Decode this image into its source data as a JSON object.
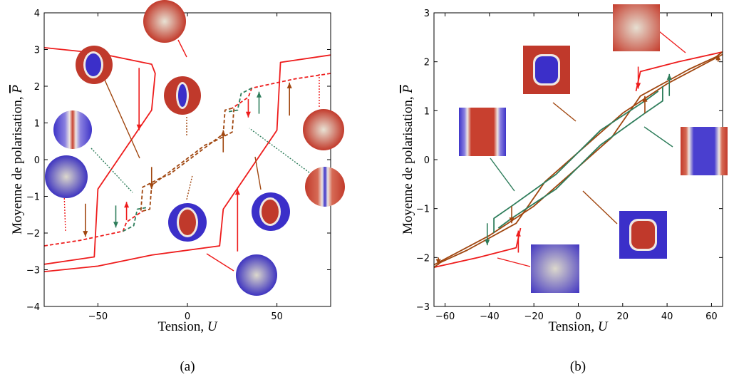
{
  "colors": {
    "red": "#ee1c1c",
    "brown": "#a0460f",
    "green": "#2e7d5b",
    "map_red": "#c0392b",
    "map_blue": "#3b2fc9"
  },
  "chart_data": [
    {
      "type": "line",
      "panel": "a",
      "caption": "(a)",
      "xlabel_text": "Tension,",
      "xlabel_symbol": "U",
      "ylabel_text": "Moyenne de polarisation,",
      "ylabel_symbol": "P",
      "xlim": [
        -80,
        80
      ],
      "ylim": [
        -4,
        4
      ],
      "xticks": [
        -50,
        0,
        50
      ],
      "xtick_labels": [
        "−50",
        "0",
        "50"
      ],
      "yticks": [
        -4,
        -3,
        -2,
        -1,
        0,
        1,
        2,
        3,
        4
      ],
      "ytick_labels": [
        "−4",
        "−3",
        "−2",
        "−1",
        "0",
        "1",
        "2",
        "3",
        "4"
      ],
      "series": [
        {
          "color": "red",
          "dash": false,
          "points": [
            [
              -80,
              -3.05
            ],
            [
              -50,
              -2.9
            ],
            [
              -20,
              -2.6
            ],
            [
              18,
              -2.35
            ],
            [
              20,
              -1.35
            ],
            [
              50,
              0.8
            ],
            [
              52,
              2.65
            ],
            [
              80,
              2.85
            ]
          ]
        },
        {
          "color": "red",
          "dash": false,
          "points": [
            [
              -80,
              3.05
            ],
            [
              -50,
              2.9
            ],
            [
              -20,
              2.6
            ],
            [
              -18,
              2.35
            ],
            [
              -20,
              1.35
            ],
            [
              -50,
              -0.8
            ],
            [
              -52,
              -2.65
            ],
            [
              -80,
              -2.85
            ]
          ]
        },
        {
          "color": "red",
          "dash": true,
          "points": [
            [
              -80,
              -2.35
            ],
            [
              -60,
              -2.2
            ],
            [
              -36,
              -1.95
            ],
            [
              -34,
              -1.7
            ],
            [
              -25,
              -1.4
            ]
          ]
        },
        {
          "color": "red",
          "dash": true,
          "points": [
            [
              80,
              2.35
            ],
            [
              60,
              2.2
            ],
            [
              36,
              1.95
            ],
            [
              34,
              1.7
            ],
            [
              25,
              1.4
            ]
          ]
        },
        {
          "color": "brown",
          "dash": true,
          "points": [
            [
              -25,
              -1.4
            ],
            [
              -21,
              -1.35
            ],
            [
              -20,
              -0.7
            ],
            [
              10,
              0.4
            ],
            [
              15,
              0.5
            ],
            [
              25,
              0.75
            ],
            [
              26,
              1.4
            ]
          ]
        },
        {
          "color": "brown",
          "dash": true,
          "points": [
            [
              25,
              1.4
            ],
            [
              21,
              1.35
            ],
            [
              20,
              0.7
            ],
            [
              -10,
              -0.4
            ],
            [
              -15,
              -0.5
            ],
            [
              -25,
              -0.75
            ],
            [
              -26,
              -1.4
            ]
          ]
        },
        {
          "color": "green",
          "dash": true,
          "points": [
            [
              -36,
              -1.95
            ],
            [
              -30,
              -1.8
            ],
            [
              -28,
              -1.35
            ],
            [
              -22,
              -1.3
            ]
          ]
        },
        {
          "color": "green",
          "dash": true,
          "points": [
            [
              36,
              1.95
            ],
            [
              30,
              1.8
            ],
            [
              28,
              1.35
            ],
            [
              22,
              1.3
            ]
          ]
        }
      ],
      "arrows": [
        {
          "color": "red",
          "x": -27,
          "y1": 2.5,
          "y2": 0.8
        },
        {
          "color": "red",
          "x": 28,
          "y1": -2.5,
          "y2": -0.8
        },
        {
          "color": "brown",
          "x": -57,
          "y1": -1.2,
          "y2": -2.1
        },
        {
          "color": "brown",
          "x": 57,
          "y1": 1.2,
          "y2": 2.1
        },
        {
          "color": "brown",
          "x": -20,
          "y1": -0.2,
          "y2": -0.8
        },
        {
          "color": "brown",
          "x": 20,
          "y1": 0.2,
          "y2": 0.8
        },
        {
          "color": "red",
          "x": 34,
          "y1": 1.65,
          "y2": 1.15
        },
        {
          "color": "red",
          "x": -34,
          "y1": -1.65,
          "y2": -1.15
        },
        {
          "color": "green",
          "x": -40,
          "y1": -1.25,
          "y2": -1.85
        },
        {
          "color": "green",
          "x": 40,
          "y1": 1.25,
          "y2": 1.85
        }
      ]
    },
    {
      "type": "line",
      "panel": "b",
      "caption": "(b)",
      "xlabel_text": "Tension,",
      "xlabel_symbol": "U",
      "ylabel_text": "Moyenne de polarisation,",
      "ylabel_symbol": "P",
      "xlim": [
        -65,
        65
      ],
      "ylim": [
        -3,
        3
      ],
      "xticks": [
        -60,
        -40,
        -20,
        0,
        20,
        40,
        60
      ],
      "xtick_labels": [
        "−60",
        "−40",
        "−20",
        "0",
        "20",
        "40",
        "60"
      ],
      "yticks": [
        -3,
        -2,
        -1,
        0,
        1,
        2,
        3
      ],
      "ytick_labels": [
        "−3",
        "−2",
        "−1",
        "0",
        "1",
        "2",
        "3"
      ],
      "series": [
        {
          "color": "red",
          "dash": false,
          "points": [
            [
              -65,
              -2.2
            ],
            [
              -45,
              -2.0
            ],
            [
              -28,
              -1.8
            ],
            [
              -26,
              -1.4
            ]
          ]
        },
        {
          "color": "red",
          "dash": false,
          "points": [
            [
              65,
              2.2
            ],
            [
              45,
              2.0
            ],
            [
              28,
              1.8
            ],
            [
              26,
              1.4
            ]
          ]
        },
        {
          "color": "brown",
          "dash": false,
          "points": [
            [
              -65,
              -2.15
            ],
            [
              -40,
              -1.55
            ],
            [
              -20,
              -0.95
            ],
            [
              0,
              -0.15
            ],
            [
              15,
              0.45
            ],
            [
              18,
              0.65
            ],
            [
              28,
              1.3
            ],
            [
              50,
              1.85
            ],
            [
              62,
              2.1
            ],
            [
              65,
              2.2
            ]
          ]
        },
        {
          "color": "brown",
          "dash": false,
          "points": [
            [
              65,
              2.15
            ],
            [
              40,
              1.55
            ],
            [
              20,
              0.95
            ],
            [
              0,
              0.15
            ],
            [
              -15,
              -0.45
            ],
            [
              -18,
              -0.65
            ],
            [
              -28,
              -1.3
            ],
            [
              -50,
              -1.85
            ],
            [
              -62,
              -2.1
            ],
            [
              -65,
              -2.2
            ]
          ]
        },
        {
          "color": "green",
          "dash": false,
          "points": [
            [
              -36,
              -1.4
            ],
            [
              -30,
              -1.2
            ],
            [
              -10,
              -0.6
            ],
            [
              10,
              0.3
            ],
            [
              30,
              0.95
            ],
            [
              38,
              1.2
            ],
            [
              38,
              1.5
            ]
          ]
        },
        {
          "color": "green",
          "dash": false,
          "points": [
            [
              36,
              1.4
            ],
            [
              30,
              1.2
            ],
            [
              10,
              0.6
            ],
            [
              -10,
              -0.3
            ],
            [
              -30,
              -0.95
            ],
            [
              -38,
              -1.2
            ],
            [
              -38,
              -1.5
            ]
          ]
        }
      ],
      "arrows": [
        {
          "color": "red",
          "x": 27,
          "y1": 1.9,
          "y2": 1.45
        },
        {
          "color": "red",
          "x": -27,
          "y1": -1.9,
          "y2": -1.45
        },
        {
          "color": "brown",
          "x": -30,
          "y1": -0.95,
          "y2": -1.3
        },
        {
          "color": "brown",
          "x": 30,
          "y1": 0.95,
          "y2": 1.3
        },
        {
          "color": "green",
          "x": -41,
          "y1": -1.3,
          "y2": -1.75
        },
        {
          "color": "green",
          "x": 41,
          "y1": 1.3,
          "y2": 1.75
        },
        {
          "color": "brown",
          "x": -63,
          "y1": -2.0,
          "y2": -2.15
        },
        {
          "color": "brown",
          "x": 63,
          "y1": 2.0,
          "y2": 2.15
        }
      ]
    }
  ]
}
